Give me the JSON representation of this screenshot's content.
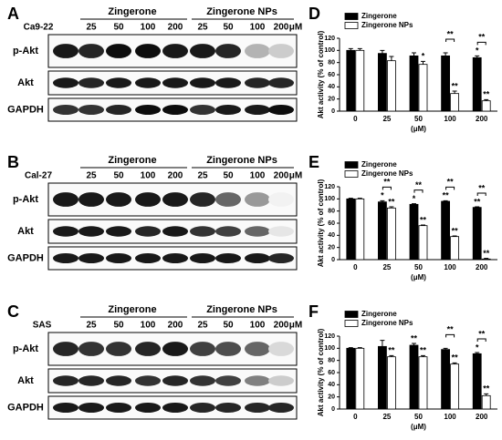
{
  "blots": [
    {
      "letter": "A",
      "cell_line": "Ca9-22",
      "groups": [
        "Zingerone",
        "Zingerone NPs"
      ],
      "lanes": [
        "25",
        "50",
        "100",
        "200",
        "25",
        "50",
        "100",
        "200"
      ],
      "unit": "μM",
      "rows": [
        "p-Akt",
        "Akt",
        "GAPDH"
      ]
    },
    {
      "letter": "B",
      "cell_line": "Cal-27",
      "groups": [
        "Zingerone",
        "Zingerone NPs"
      ],
      "lanes": [
        "25",
        "50",
        "100",
        "200",
        "25",
        "50",
        "100",
        "200"
      ],
      "unit": "μM",
      "rows": [
        "p-Akt",
        "Akt",
        "GAPDH"
      ]
    },
    {
      "letter": "C",
      "cell_line": "SAS",
      "groups": [
        "Zingerone",
        "Zingerone NPs"
      ],
      "lanes": [
        "25",
        "50",
        "100",
        "200",
        "25",
        "50",
        "100",
        "200"
      ],
      "unit": "μM",
      "rows": [
        "p-Akt",
        "Akt",
        "GAPDH"
      ]
    }
  ],
  "chart_data": [
    {
      "type": "bar",
      "label": "D",
      "y_label": "Akt activity (% of control)",
      "x_label": "(μM)",
      "categories": [
        "0",
        "25",
        "50",
        "100",
        "200"
      ],
      "ylim": [
        0,
        120
      ],
      "yticks": [
        0,
        20,
        40,
        60,
        80,
        100,
        120
      ],
      "series": [
        {
          "name": "Zingerone",
          "color": "#000000",
          "values": [
            100,
            95,
            91,
            91,
            88
          ],
          "errors": [
            3,
            5,
            5,
            5,
            3
          ],
          "significance": [
            null,
            null,
            null,
            null,
            "*"
          ]
        },
        {
          "name": "Zingerone NPs",
          "color": "#ffffff",
          "values": [
            100,
            83,
            77,
            29,
            17
          ],
          "errors": [
            3,
            7,
            5,
            4,
            2
          ],
          "significance": [
            null,
            null,
            "*",
            "**",
            "**"
          ]
        }
      ],
      "comparisons": [
        null,
        null,
        null,
        "**",
        "**"
      ]
    },
    {
      "type": "bar",
      "label": "E",
      "y_label": "Akt activity (% of control)",
      "x_label": "(μM)",
      "categories": [
        "0",
        "25",
        "50",
        "100",
        "200"
      ],
      "ylim": [
        0,
        120
      ],
      "yticks": [
        0,
        20,
        40,
        60,
        80,
        100,
        120
      ],
      "series": [
        {
          "name": "Zingerone",
          "color": "#000000",
          "values": [
            100,
            95,
            91,
            96,
            86
          ],
          "errors": [
            1,
            2,
            1,
            1,
            1
          ],
          "significance": [
            null,
            "*",
            "*",
            "**",
            "**"
          ]
        },
        {
          "name": "Zingerone NPs",
          "color": "#ffffff",
          "values": [
            100,
            85,
            56,
            38,
            1
          ],
          "errors": [
            1,
            2,
            1,
            1,
            1
          ],
          "significance": [
            null,
            "**",
            "**",
            "**",
            "**"
          ]
        }
      ],
      "comparisons": [
        null,
        "**",
        "**",
        "**",
        "**"
      ]
    },
    {
      "type": "bar",
      "label": "F",
      "y_label": "Akt activity (% of control)",
      "x_label": "(μM)",
      "categories": [
        "0",
        "25",
        "50",
        "100",
        "200"
      ],
      "ylim": [
        0,
        120
      ],
      "yticks": [
        0,
        20,
        40,
        60,
        80,
        100,
        120
      ],
      "series": [
        {
          "name": "Zingerone",
          "color": "#000000",
          "values": [
            100,
            103,
            105,
            98,
            91
          ],
          "errors": [
            1,
            10,
            3,
            2,
            2
          ],
          "significance": [
            null,
            null,
            "**",
            null,
            "*"
          ]
        },
        {
          "name": "Zingerone NPs",
          "color": "#ffffff",
          "values": [
            100,
            86,
            86,
            74,
            22
          ],
          "errors": [
            1,
            2,
            2,
            2,
            3
          ],
          "significance": [
            null,
            "**",
            "**",
            "**",
            "**"
          ]
        }
      ],
      "comparisons": [
        null,
        null,
        null,
        "**",
        "**"
      ]
    }
  ]
}
